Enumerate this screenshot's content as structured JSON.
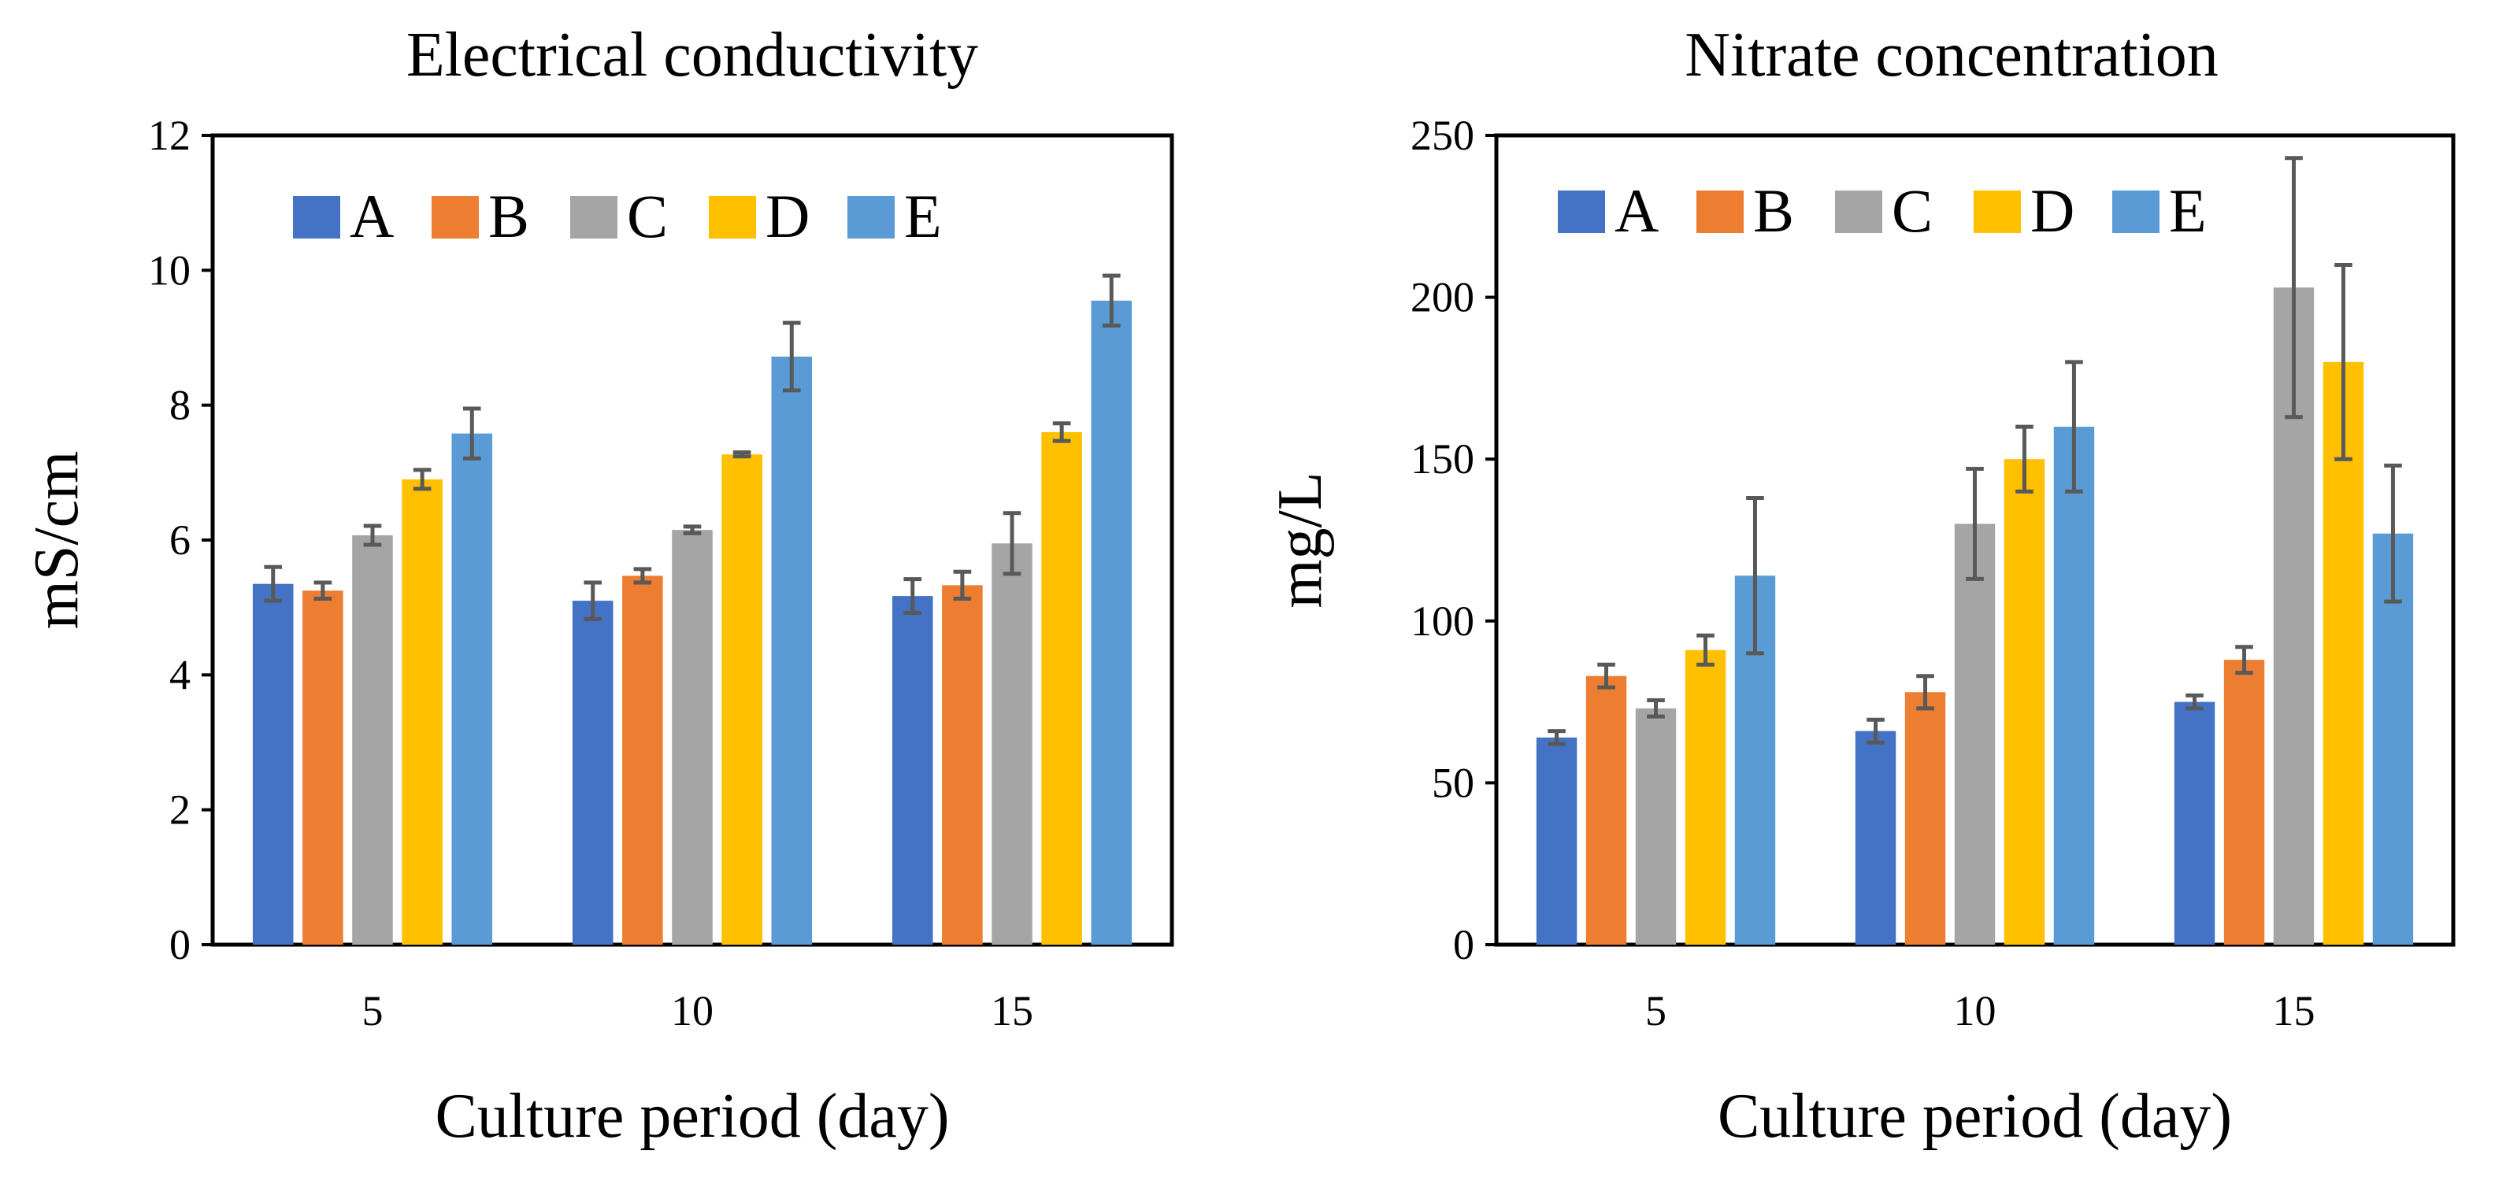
{
  "chart_data": [
    {
      "type": "bar",
      "title": "Electrical conductivity",
      "xlabel": "Culture period (day)",
      "ylabel": "mS/cm",
      "ylim": [
        0,
        12
      ],
      "yticks": [
        "0",
        "2",
        "4",
        "6",
        "8",
        "10",
        "12"
      ],
      "grid": false,
      "legend_position": "top-left",
      "categories": [
        "5",
        "10",
        "15"
      ],
      "series": [
        {
          "name": "A",
          "color": "#4472C4",
          "values": [
            5.35,
            5.1,
            5.17
          ],
          "errors": [
            0.25,
            0.27,
            0.25
          ]
        },
        {
          "name": "B",
          "color": "#ED7D31",
          "values": [
            5.25,
            5.47,
            5.33
          ],
          "errors": [
            0.12,
            0.1,
            0.2
          ]
        },
        {
          "name": "C",
          "color": "#A5A5A5",
          "values": [
            6.07,
            6.15,
            5.95
          ],
          "errors": [
            0.14,
            0.05,
            0.45
          ]
        },
        {
          "name": "D",
          "color": "#FFC000",
          "values": [
            6.9,
            7.27,
            7.6
          ],
          "errors": [
            0.14,
            0.03,
            0.13
          ]
        },
        {
          "name": "E",
          "color": "#5B9BD5",
          "values": [
            7.58,
            8.72,
            9.55
          ],
          "errors": [
            0.37,
            0.5,
            0.37
          ]
        }
      ]
    },
    {
      "type": "bar",
      "title": "Nitrate concentration",
      "xlabel": "Culture period (day)",
      "ylabel": "mg/L",
      "ylim": [
        0,
        250
      ],
      "yticks": [
        "0",
        "50",
        "100",
        "150",
        "200",
        "250"
      ],
      "grid": false,
      "legend_position": "top-left",
      "categories": [
        "5",
        "10",
        "15"
      ],
      "series": [
        {
          "name": "A",
          "color": "#4472C4",
          "values": [
            64,
            66,
            75
          ],
          "errors": [
            2,
            3.5,
            2
          ]
        },
        {
          "name": "B",
          "color": "#ED7D31",
          "values": [
            83,
            78,
            88
          ],
          "errors": [
            3.5,
            5,
            4
          ]
        },
        {
          "name": "C",
          "color": "#A5A5A5",
          "values": [
            73,
            130,
            203
          ],
          "errors": [
            2.5,
            17,
            40
          ]
        },
        {
          "name": "D",
          "color": "#FFC000",
          "values": [
            91,
            150,
            180
          ],
          "errors": [
            4.5,
            10,
            30
          ]
        },
        {
          "name": "E",
          "color": "#5B9BD5",
          "values": [
            114,
            160,
            127
          ],
          "errors": [
            24,
            20,
            21
          ]
        }
      ]
    }
  ]
}
